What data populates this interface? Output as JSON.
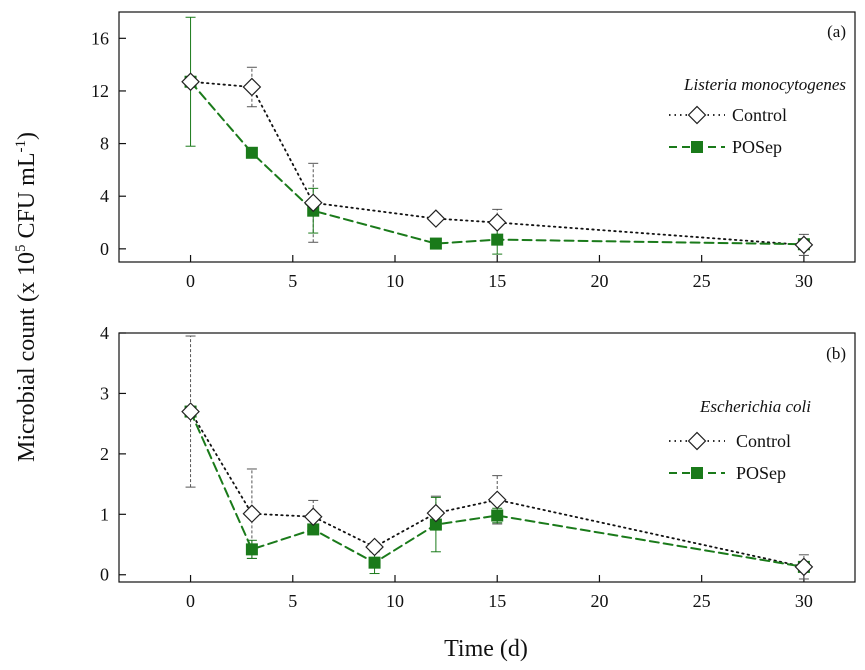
{
  "chart_data": [
    {
      "type": "line",
      "panel_label": "(a)",
      "organism": "Listeria monocytogenes",
      "ylim": [
        -1,
        18
      ],
      "yticks": [
        0,
        4,
        8,
        12,
        16
      ],
      "xlim": [
        -3.5,
        32.5
      ],
      "xticks": [
        0,
        5,
        10,
        15,
        20,
        25,
        30
      ],
      "legend_position": "top-right",
      "series": [
        {
          "name": "Control",
          "color": "#111111",
          "marker": "diamond-open",
          "line": "dotted",
          "x": [
            0,
            3,
            6,
            12,
            15,
            30
          ],
          "y": [
            12.7,
            12.3,
            3.5,
            2.3,
            2.0,
            0.3
          ],
          "err": [
            0.0,
            1.5,
            3.0,
            0.3,
            1.0,
            0.8
          ]
        },
        {
          "name": "POSep",
          "color": "#1a7a1a",
          "marker": "square-filled",
          "line": "dashed",
          "x": [
            0,
            3,
            6,
            12,
            15,
            30
          ],
          "y": [
            12.7,
            7.3,
            2.9,
            0.4,
            0.7,
            0.35
          ],
          "err": [
            4.9,
            0.2,
            1.7,
            0.35,
            1.1,
            0.4
          ]
        }
      ]
    },
    {
      "type": "line",
      "panel_label": "(b)",
      "organism": "Escherichia coli",
      "ylim": [
        -0.12,
        4.0
      ],
      "yticks": [
        0,
        1,
        2,
        3,
        4
      ],
      "xlim": [
        -3.5,
        32.5
      ],
      "xticks": [
        0,
        5,
        10,
        15,
        20,
        25,
        30
      ],
      "legend_position": "right",
      "series": [
        {
          "name": "Control",
          "color": "#111111",
          "marker": "diamond-open",
          "line": "dotted",
          "x": [
            0,
            3,
            6,
            9,
            12,
            15,
            30
          ],
          "y": [
            2.7,
            1.01,
            0.96,
            0.46,
            1.02,
            1.24,
            0.13
          ],
          "err": [
            1.25,
            0.74,
            0.27,
            0.07,
            0.28,
            0.4,
            0.2
          ]
        },
        {
          "name": "POSep",
          "color": "#1a7a1a",
          "marker": "square-filled",
          "line": "dashed",
          "x": [
            0,
            3,
            6,
            9,
            12,
            15,
            30
          ],
          "y": [
            2.7,
            0.42,
            0.75,
            0.2,
            0.83,
            0.98,
            0.13
          ],
          "err": [
            0.0,
            0.15,
            0.06,
            0.18,
            0.45,
            0.12,
            0.06
          ]
        }
      ]
    }
  ],
  "axes": {
    "ylabel_main": "Microbial count (x 10",
    "ylabel_exp1": "5",
    "ylabel_mid": " CFU mL",
    "ylabel_exp2": "-1",
    "ylabel_end": ")",
    "xlabel": "Time (d)"
  }
}
